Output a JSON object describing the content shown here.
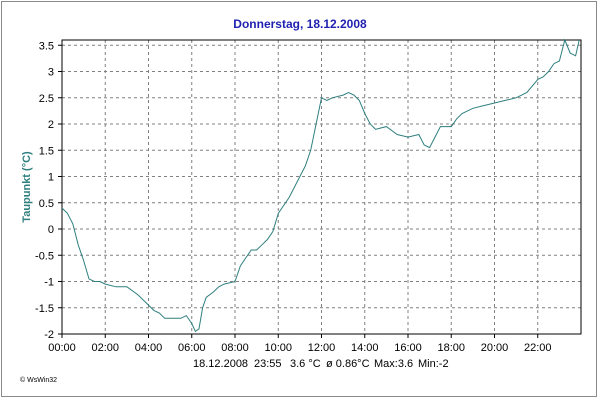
{
  "chart_data": {
    "type": "line",
    "title": "Donnerstag, 18.12.2008",
    "ylabel": "Taupunkt (°C)",
    "xlabel": "",
    "xlim": [
      "00:00",
      "24:00"
    ],
    "ylim": [
      -2,
      3.6
    ],
    "grid": true,
    "x_ticks": [
      "00:00",
      "02:00",
      "04:00",
      "06:00",
      "08:00",
      "10:00",
      "12:00",
      "14:00",
      "16:00",
      "18:00",
      "20:00",
      "22:00"
    ],
    "y_ticks": [
      "-2",
      "-1.5",
      "-1",
      "-0.5",
      "0",
      "0.5",
      "1",
      "1.5",
      "2",
      "2.5",
      "3",
      "3.5"
    ],
    "series_color": "#2f7f7f",
    "x": [
      "00:00",
      "00:15",
      "00:30",
      "00:45",
      "01:00",
      "01:15",
      "01:30",
      "01:45",
      "02:00",
      "02:30",
      "03:00",
      "03:30",
      "04:00",
      "04:15",
      "04:30",
      "04:45",
      "05:00",
      "05:30",
      "05:45",
      "06:00",
      "06:10",
      "06:20",
      "06:30",
      "06:40",
      "07:00",
      "07:15",
      "07:30",
      "08:00",
      "08:15",
      "08:30",
      "08:45",
      "09:00",
      "09:15",
      "09:30",
      "09:45",
      "10:00",
      "10:30",
      "10:45",
      "11:00",
      "11:15",
      "11:30",
      "11:45",
      "12:00",
      "12:15",
      "12:30",
      "13:00",
      "13:15",
      "13:30",
      "13:45",
      "14:00",
      "14:15",
      "14:30",
      "15:00",
      "15:30",
      "16:00",
      "16:30",
      "16:45",
      "17:00",
      "17:15",
      "17:30",
      "18:00",
      "18:15",
      "18:30",
      "19:00",
      "19:30",
      "20:00",
      "20:30",
      "21:00",
      "21:30",
      "22:00",
      "22:15",
      "22:30",
      "22:45",
      "23:00",
      "23:15",
      "23:30",
      "23:45",
      "23:55"
    ],
    "y": [
      0.4,
      0.3,
      0.1,
      -0.3,
      -0.6,
      -0.95,
      -1.0,
      -1.0,
      -1.05,
      -1.1,
      -1.1,
      -1.25,
      -1.45,
      -1.55,
      -1.6,
      -1.7,
      -1.7,
      -1.7,
      -1.65,
      -1.8,
      -1.95,
      -1.9,
      -1.5,
      -1.3,
      -1.2,
      -1.1,
      -1.05,
      -1.0,
      -0.7,
      -0.55,
      -0.4,
      -0.4,
      -0.3,
      -0.2,
      -0.05,
      0.3,
      0.6,
      0.8,
      1.0,
      1.2,
      1.5,
      2.0,
      2.5,
      2.45,
      2.5,
      2.55,
      2.6,
      2.55,
      2.45,
      2.2,
      2.0,
      1.9,
      1.95,
      1.8,
      1.75,
      1.8,
      1.6,
      1.55,
      1.75,
      1.95,
      1.95,
      2.1,
      2.2,
      2.3,
      2.35,
      2.4,
      2.45,
      2.5,
      2.6,
      2.85,
      2.9,
      3.0,
      3.15,
      3.2,
      3.6,
      3.35,
      3.3,
      3.6
    ]
  },
  "footer": {
    "date": "18.12.2008",
    "time": "23:55",
    "current": "3.6 °C",
    "average": "ø 0.86°C",
    "max": "Max:3.6",
    "min": "Min:-2"
  },
  "credit": "© WsWin32"
}
